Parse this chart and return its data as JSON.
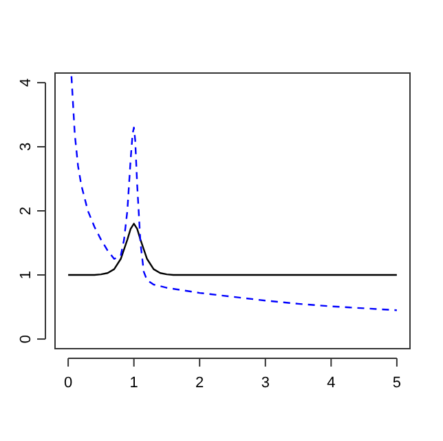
{
  "chart_data": {
    "type": "line",
    "xlim": [
      -0.2,
      5.2
    ],
    "ylim": [
      -0.15,
      4.15
    ],
    "xticks": [
      0,
      1,
      2,
      3,
      4,
      5
    ],
    "yticks": [
      0,
      1,
      2,
      3,
      4
    ],
    "grid": false,
    "marker": "none",
    "series": [
      {
        "color": "#000000",
        "line_style": "solid",
        "x": [
          0,
          0.4,
          0.5,
          0.6,
          0.7,
          0.8,
          0.9,
          0.95,
          1,
          1.05,
          1.1,
          1.2,
          1.3,
          1.4,
          1.5,
          1.6,
          2,
          3,
          4,
          5
        ],
        "values": [
          1,
          1,
          1.01,
          1.03,
          1.09,
          1.25,
          1.55,
          1.72,
          1.8,
          1.72,
          1.55,
          1.25,
          1.09,
          1.03,
          1.01,
          1,
          1,
          1,
          1,
          1
        ]
      },
      {
        "color": "#0000ff",
        "line_style": "dashed",
        "x": [
          0.05,
          0.1,
          0.15,
          0.2,
          0.3,
          0.4,
          0.5,
          0.6,
          0.7,
          0.8,
          0.85,
          0.9,
          0.95,
          0.98,
          1,
          1.02,
          1.05,
          1.1,
          1.15,
          1.2,
          1.3,
          1.5,
          2,
          2.5,
          3,
          3.5,
          4,
          4.5,
          5
        ],
        "values": [
          4.1,
          3.2,
          2.7,
          2.4,
          2.0,
          1.75,
          1.55,
          1.38,
          1.25,
          1.3,
          1.55,
          2.0,
          2.8,
          3.2,
          3.3,
          3.1,
          2.4,
          1.5,
          1.05,
          0.92,
          0.85,
          0.8,
          0.72,
          0.66,
          0.6,
          0.55,
          0.51,
          0.48,
          0.45
        ]
      }
    ]
  }
}
